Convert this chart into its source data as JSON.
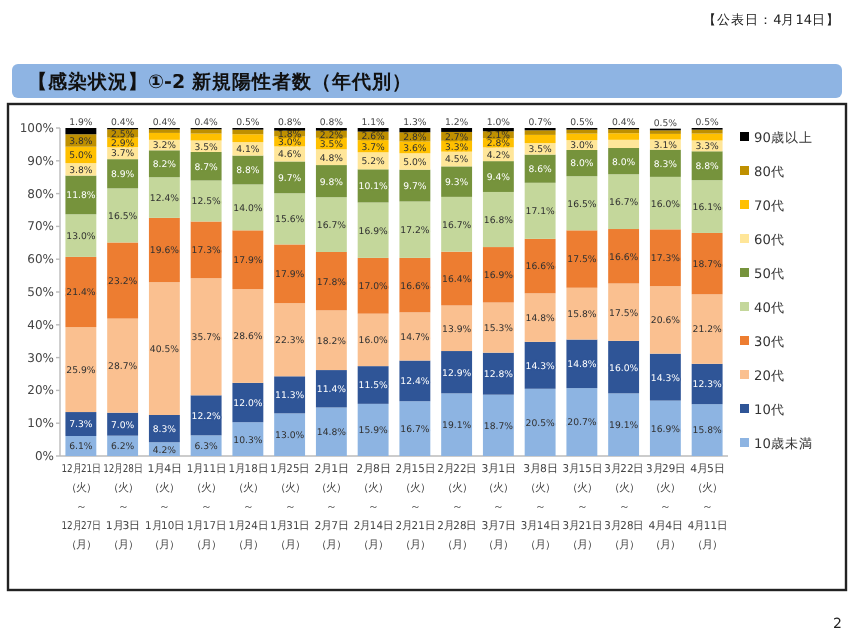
{
  "chart_data": {
    "type": "bar",
    "stacked": true,
    "title": "【感染状況】①-2 新規陽性者数（年代別）",
    "annotations": [
      "【公表日：4月14日】",
      "2"
    ],
    "categories": [
      "12月21日（火）～12月27日（月）",
      "12月28日（火）～1月3日（月）",
      "1月4日（火）～1月10日（月）",
      "1月11日（火）～1月17日（月）",
      "1月18日（火）～1月24日（月）",
      "1月25日（火）～1月31日（月）",
      "2月1日（火）～2月7日（月）",
      "2月8日（火）～2月14日（月）",
      "2月15日（火）～2月21日（月）",
      "2月22日（火）～2月28日（月）",
      "3月1日（火）～3月7日（月）",
      "3月8日（火）～3月14日（月）",
      "3月15日（火）～3月21日（月）",
      "3月22日（火）～3月28日（月）",
      "3月29日（火）～4月4日（月）",
      "4月5日（火）～4月11日（月）"
    ],
    "series": [
      {
        "name": "10歳未満",
        "color": "#8db4e2",
        "values": [
          6.1,
          6.2,
          4.2,
          6.3,
          10.3,
          13.0,
          14.8,
          15.9,
          16.7,
          19.1,
          18.7,
          20.5,
          20.7,
          19.1,
          16.9,
          15.8
        ],
        "value_labels": [
          "6.1%",
          "6.2%",
          "4.2%",
          "6.3%",
          "10.3%",
          "13.0%",
          "14.8%",
          "15.9%",
          "16.7%",
          "19.1%",
          "18.7%",
          "20.5%",
          "20.7%",
          "19.1%",
          "16.9%",
          "15.8%"
        ]
      },
      {
        "name": "10代",
        "color": "#2f5597",
        "values": [
          7.3,
          7.0,
          8.3,
          12.2,
          12.0,
          11.3,
          11.4,
          11.5,
          12.4,
          12.9,
          12.8,
          14.3,
          14.8,
          16.0,
          14.3,
          12.3
        ],
        "value_labels": [
          "7.3%",
          "7.0%",
          "8.3%",
          "12.2%",
          "12.0%",
          "11.3%",
          "11.4%",
          "11.5%",
          "12.4%",
          "12.9%",
          "12.8%",
          "14.3%",
          "14.8%",
          "16.0%",
          "14.3%",
          "12.3%"
        ]
      },
      {
        "name": "20代",
        "color": "#fac090",
        "values": [
          25.9,
          28.7,
          40.5,
          35.7,
          28.6,
          22.3,
          18.2,
          16.0,
          14.7,
          13.9,
          15.3,
          14.8,
          15.8,
          17.5,
          20.6,
          21.2
        ],
        "value_labels": [
          "25.9%",
          "28.7%",
          "40.5%",
          "35.7%",
          "28.6%",
          "22.3%",
          "18.2%",
          "16.0%",
          "14.7%",
          "13.9%",
          "15.3%",
          "14.8%",
          "15.8%",
          "17.5%",
          "20.6%",
          "21.2%"
        ]
      },
      {
        "name": "30代",
        "color": "#ed7d31",
        "values": [
          21.4,
          23.2,
          19.6,
          17.3,
          17.9,
          17.9,
          17.8,
          17.0,
          16.6,
          16.4,
          16.9,
          16.6,
          17.5,
          16.6,
          17.3,
          18.7
        ],
        "value_labels": [
          "21.4%",
          "23.2%",
          "19.6%",
          "17.3%",
          "17.9%",
          "17.9%",
          "17.8%",
          "17.0%",
          "16.6%",
          "16.4%",
          "16.9%",
          "16.6%",
          "17.5%",
          "16.6%",
          "17.3%",
          "18.7%"
        ]
      },
      {
        "name": "40代",
        "color": "#c4d79b",
        "values": [
          13.0,
          16.5,
          12.4,
          12.5,
          14.0,
          15.6,
          16.7,
          16.9,
          17.2,
          16.7,
          16.8,
          17.1,
          16.5,
          16.7,
          16.0,
          16.1
        ],
        "value_labels": [
          "13.0%",
          "16.5%",
          "12.4%",
          "12.5%",
          "14.0%",
          "15.6%",
          "16.7%",
          "16.9%",
          "17.2%",
          "16.7%",
          "16.8%",
          "17.1%",
          "16.5%",
          "16.7%",
          "16.0%",
          "16.1%"
        ]
      },
      {
        "name": "50代",
        "color": "#76933c",
        "values": [
          11.8,
          8.9,
          8.2,
          8.7,
          8.8,
          9.7,
          9.8,
          10.1,
          9.7,
          9.3,
          9.4,
          8.6,
          8.0,
          8.0,
          8.3,
          8.8
        ],
        "value_labels": [
          "11.8%",
          "8.9%",
          "8.2%",
          "8.7%",
          "8.8%",
          "9.7%",
          "9.8%",
          "10.1%",
          "9.7%",
          "9.3%",
          "9.4%",
          "8.6%",
          "8.0%",
          "8.0%",
          "8.3%",
          "8.8%"
        ]
      },
      {
        "name": "60代",
        "color": "#ffe699",
        "values": [
          3.8,
          3.7,
          3.2,
          3.5,
          4.1,
          4.6,
          4.8,
          5.2,
          5.0,
          4.5,
          4.2,
          3.5,
          3.0,
          2.5,
          3.1,
          3.3
        ],
        "value_labels": [
          "3.8%",
          "3.7%",
          "3.2%",
          "3.5%",
          "4.1%",
          "4.6%",
          "4.8%",
          "5.2%",
          "5.0%",
          "4.5%",
          "4.2%",
          "3.5%",
          "3.0%",
          null,
          "3.1%",
          "3.3%"
        ]
      },
      {
        "name": "70代",
        "color": "#ffc000",
        "values": [
          5.0,
          2.9,
          2.1,
          2.1,
          2.4,
          3.0,
          3.5,
          3.7,
          3.6,
          3.3,
          2.8,
          2.5,
          2.0,
          2.0,
          1.7,
          2.1
        ],
        "value_labels": [
          "5.0%",
          "2.9%",
          null,
          null,
          null,
          "3.0%",
          "3.5%",
          "3.7%",
          "3.6%",
          "3.3%",
          "2.8%",
          null,
          null,
          null,
          null,
          null
        ]
      },
      {
        "name": "80代",
        "color": "#bf9000",
        "values": [
          3.8,
          2.5,
          1.1,
          1.3,
          1.4,
          1.8,
          2.2,
          2.6,
          2.8,
          2.7,
          2.1,
          1.4,
          1.2,
          1.2,
          1.1,
          1.2
        ],
        "value_labels": [
          "3.8%",
          "2.5%",
          null,
          null,
          null,
          "1.8%",
          "2.2%",
          "2.6%",
          "2.8%",
          "2.7%",
          "2.1%",
          null,
          null,
          null,
          null,
          null
        ]
      },
      {
        "name": "90歳以上",
        "color": "#000000",
        "values": [
          1.9,
          0.4,
          0.4,
          0.4,
          0.5,
          0.8,
          0.8,
          1.1,
          1.3,
          1.2,
          1.0,
          0.7,
          0.5,
          0.4,
          0.5,
          0.5
        ],
        "value_labels": [
          "1.9%",
          "0.4%",
          "0.4%",
          "0.4%",
          "0.5%",
          "0.8%",
          "0.8%",
          "1.1%",
          "1.3%",
          "1.2%",
          "1.0%",
          "0.7%",
          "0.5%",
          "0.4%",
          "0.5%",
          "0.5%"
        ]
      }
    ],
    "ylim": [
      0,
      100
    ],
    "yticks": [
      {
        "value": 0,
        "label": "0%"
      },
      {
        "value": 10,
        "label": "10%"
      },
      {
        "value": 20,
        "label": "20%"
      },
      {
        "value": 30,
        "label": "30%"
      },
      {
        "value": 40,
        "label": "40%"
      },
      {
        "value": 50,
        "label": "50%"
      },
      {
        "value": 60,
        "label": "60%"
      },
      {
        "value": 70,
        "label": "70%"
      },
      {
        "value": 80,
        "label": "80%"
      },
      {
        "value": 90,
        "label": "90%"
      },
      {
        "value": 100,
        "label": "100%"
      }
    ],
    "legend": "right"
  }
}
